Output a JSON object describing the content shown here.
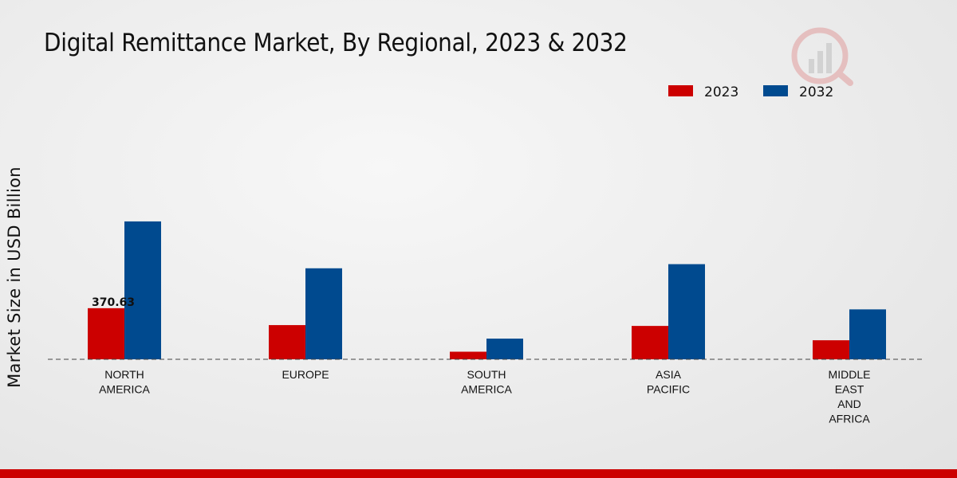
{
  "chart_data": {
    "type": "bar",
    "title": "Digital Remittance Market, By Regional, 2023 & 2032",
    "xlabel": "",
    "ylabel": "Market Size in USD Billion",
    "categories": [
      [
        "NORTH",
        "AMERICA"
      ],
      [
        "EUROPE"
      ],
      [
        "SOUTH",
        "AMERICA"
      ],
      [
        "ASIA",
        "PACIFIC"
      ],
      [
        "MIDDLE",
        "EAST",
        "AND",
        "AFRICA"
      ]
    ],
    "series": [
      {
        "name": "2023",
        "color": "#cc0000",
        "values": [
          370.63,
          248,
          55,
          242,
          138
        ]
      },
      {
        "name": "2032",
        "color": "#004a8f",
        "values": [
          1000,
          660,
          150,
          690,
          362
        ]
      }
    ],
    "data_labels": [
      {
        "series": 0,
        "index": 0,
        "text": "370.63"
      }
    ],
    "ylim": [
      0,
      1300
    ],
    "grid": false,
    "legend_position": "top-right"
  },
  "colors": {
    "accent": "#cc0000",
    "footer": "#cc0000"
  }
}
